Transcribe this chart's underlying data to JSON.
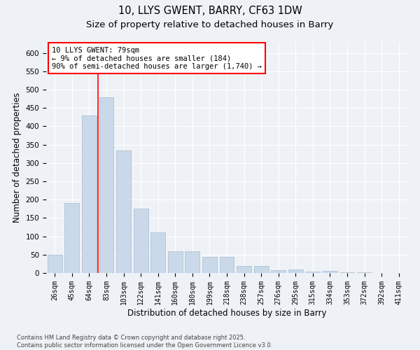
{
  "title1": "10, LLYS GWENT, BARRY, CF63 1DW",
  "title2": "Size of property relative to detached houses in Barry",
  "xlabel": "Distribution of detached houses by size in Barry",
  "ylabel": "Number of detached properties",
  "categories": [
    "26sqm",
    "45sqm",
    "64sqm",
    "83sqm",
    "103sqm",
    "122sqm",
    "141sqm",
    "160sqm",
    "180sqm",
    "199sqm",
    "218sqm",
    "238sqm",
    "257sqm",
    "276sqm",
    "295sqm",
    "315sqm",
    "334sqm",
    "353sqm",
    "372sqm",
    "392sqm",
    "411sqm"
  ],
  "values": [
    50,
    190,
    430,
    480,
    335,
    175,
    110,
    60,
    60,
    43,
    43,
    20,
    20,
    8,
    10,
    3,
    5,
    1,
    1,
    0,
    0
  ],
  "bar_color": "#c9d9ea",
  "bar_edge_color": "#aabbcc",
  "red_line_x": 2.5,
  "annotation_text": "10 LLYS GWENT: 79sqm\n← 9% of detached houses are smaller (184)\n90% of semi-detached houses are larger (1,740) →",
  "ylim": [
    0,
    630
  ],
  "yticks": [
    0,
    50,
    100,
    150,
    200,
    250,
    300,
    350,
    400,
    450,
    500,
    550,
    600
  ],
  "background_color": "#eef2f7",
  "grid_color": "#ffffff",
  "footer": "Contains HM Land Registry data © Crown copyright and database right 2025.\nContains public sector information licensed under the Open Government Licence v3.0.",
  "title1_fontsize": 10.5,
  "title2_fontsize": 9.5,
  "axis_label_fontsize": 8.5,
  "tick_fontsize": 7,
  "annotation_fontsize": 7.5,
  "footer_fontsize": 6
}
